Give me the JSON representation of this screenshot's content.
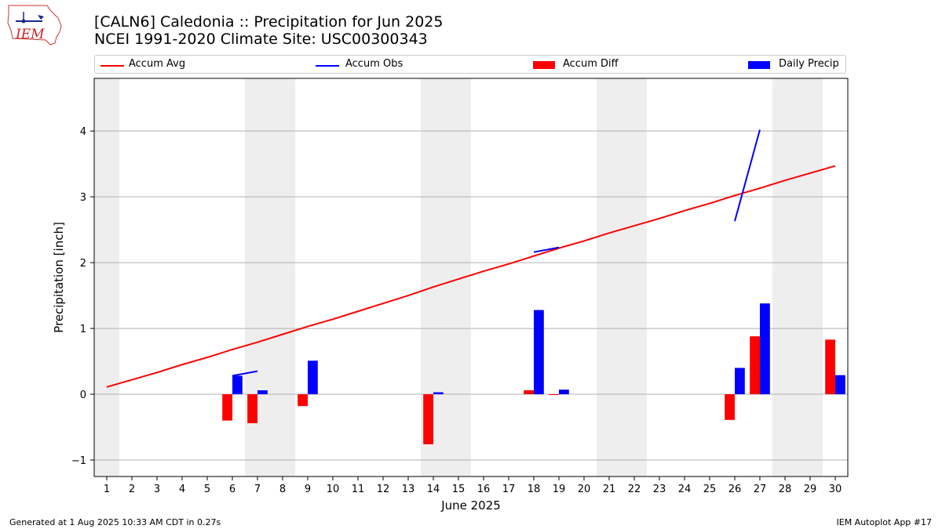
{
  "title_line1": "[CALN6] Caledonia :: Precipitation for Jun 2025",
  "title_line2": "NCEI 1991-2020 Climate Site: USC00300343",
  "logo_text": "IEM",
  "footer_left": "Generated at 1 Aug 2025 10:33 AM CDT in 0.27s",
  "footer_right": "IEM Autoplot App #17",
  "colors": {
    "avg": "#ff0000",
    "obs": "#0000ff",
    "diff": "#ff0000",
    "daily": "#0000ff",
    "weekend_band": "#eeeeee",
    "grid": "#b0b0b0"
  },
  "chart_data": {
    "type": "bar",
    "xlabel": "June 2025",
    "ylabel": "Precipitation [inch]",
    "xlim": [
      0.5,
      30.5
    ],
    "ylim": [
      -1.25,
      4.8
    ],
    "yticks": [
      -1,
      0,
      1,
      2,
      3,
      4
    ],
    "ytick_labels": [
      "−1",
      "0",
      "1",
      "2",
      "3",
      "4"
    ],
    "grid": "horizontal",
    "legend_position": "top",
    "weekend_days": [
      1,
      7,
      8,
      14,
      15,
      21,
      22,
      28,
      29
    ],
    "days": [
      1,
      2,
      3,
      4,
      5,
      6,
      7,
      8,
      9,
      10,
      11,
      12,
      13,
      14,
      15,
      16,
      17,
      18,
      19,
      20,
      21,
      22,
      23,
      24,
      25,
      26,
      27,
      28,
      29,
      30
    ],
    "series": [
      {
        "name": "Accum Avg",
        "kind": "line",
        "values": [
          0.11,
          0.22,
          0.33,
          0.45,
          0.56,
          0.68,
          0.79,
          0.91,
          1.03,
          1.14,
          1.26,
          1.38,
          1.5,
          1.63,
          1.75,
          1.87,
          1.98,
          2.1,
          2.22,
          2.33,
          2.45,
          2.56,
          2.67,
          2.79,
          2.9,
          3.02,
          3.13,
          3.25,
          3.36,
          3.47
        ]
      },
      {
        "name": "Accum Obs",
        "kind": "line",
        "segments": [
          {
            "x": [
              6,
              7
            ],
            "y": [
              0.28,
              0.35
            ]
          },
          {
            "x": [
              18,
              19
            ],
            "y": [
              2.16,
              2.23
            ]
          },
          {
            "x": [
              26,
              27
            ],
            "y": [
              2.63,
              4.02
            ]
          }
        ]
      },
      {
        "name": "Accum Diff",
        "kind": "bar",
        "values": [
          0,
          0,
          0,
          0,
          0,
          -0.4,
          -0.44,
          0,
          -0.18,
          0,
          0,
          0,
          0,
          -0.76,
          0,
          0,
          0,
          0.06,
          -0.01,
          0,
          0,
          0,
          0,
          0,
          0,
          -0.39,
          0.88,
          0,
          0,
          0.83
        ]
      },
      {
        "name": "Daily Precip",
        "kind": "bar",
        "values": [
          0,
          0,
          0,
          0,
          0,
          0.28,
          0.06,
          0,
          0.51,
          0,
          0,
          0,
          0,
          0.03,
          0,
          0,
          0,
          1.28,
          0.07,
          0,
          0,
          0,
          0,
          0,
          0,
          0.4,
          1.38,
          0,
          0,
          0.29
        ]
      }
    ]
  }
}
